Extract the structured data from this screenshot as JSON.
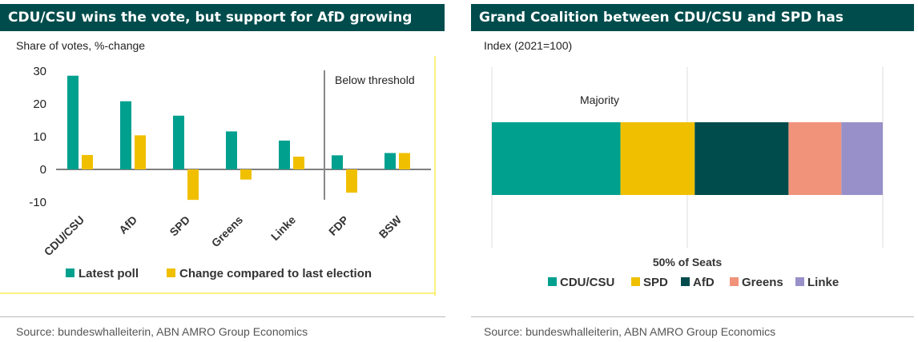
{
  "left_panel": {
    "title": "CDU/CSU wins the vote, but support for AfD growing",
    "subtitle": "Share of votes, %-change",
    "source": "Source: bundeswhalleiterin, ABN AMRO Group Economics",
    "threshold_label": "Below threshold"
  },
  "right_panel": {
    "title": "Grand Coalition between CDU/CSU and SPD has",
    "subtitle": "Index (2021=100)",
    "source": "Source:  bundeswhalleiterin, ABN AMRO Group Economics",
    "majority_label": "Majority",
    "seats_label": "50% of Seats"
  },
  "colors": {
    "teal": "#00a08f",
    "yellow": "#f0c000",
    "dark_teal": "#004c4c",
    "salmon": "#f0937a",
    "lavender": "#9790c9",
    "title_bg": "#004c4c"
  },
  "chart_data": [
    {
      "type": "bar",
      "categories": [
        "CDU/CSU",
        "AfD",
        "SPD",
        "Greens",
        "Linke",
        "FDP",
        "BSW"
      ],
      "series": [
        {
          "name": "Latest poll",
          "color": "#00a08f",
          "values": [
            28.6,
            20.8,
            16.4,
            11.6,
            8.8,
            4.3,
            5.0
          ]
        },
        {
          "name": "Change compared to last election",
          "color": "#f0c000",
          "values": [
            4.4,
            10.4,
            -9.3,
            -3.1,
            3.9,
            -7.1,
            5.0
          ]
        }
      ],
      "ylim": [
        -10,
        30
      ],
      "yticks": [
        -10,
        0,
        10,
        20,
        30
      ],
      "legend": "bottom"
    },
    {
      "type": "bar",
      "orientation": "horizontal-stacked",
      "categories": [
        ""
      ],
      "series": [
        {
          "name": "CDU/CSU",
          "color": "#00a08f",
          "values": [
            32.9
          ]
        },
        {
          "name": "SPD",
          "color": "#f0c000",
          "values": [
            19.0
          ]
        },
        {
          "name": "AfD",
          "color": "#004c4c",
          "values": [
            24.0
          ]
        },
        {
          "name": "Greens",
          "color": "#f0937a",
          "values": [
            13.5
          ]
        },
        {
          "name": "Linke",
          "color": "#9790c9",
          "values": [
            10.6
          ]
        }
      ],
      "xlim": [
        0,
        100
      ],
      "reference_line": 50,
      "legend": "bottom"
    }
  ]
}
